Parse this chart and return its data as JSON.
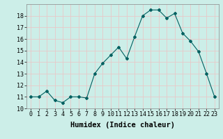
{
  "x": [
    0,
    1,
    2,
    3,
    4,
    5,
    6,
    7,
    8,
    9,
    10,
    11,
    12,
    13,
    14,
    15,
    16,
    17,
    18,
    19,
    20,
    21,
    22,
    23
  ],
  "y": [
    11,
    11,
    11.5,
    10.7,
    10.5,
    11,
    11,
    10.9,
    13,
    13.9,
    14.6,
    15.3,
    14.3,
    16.2,
    18,
    18.5,
    18.5,
    17.8,
    18.2,
    16.5,
    15.8,
    14.9,
    13,
    11
  ],
  "line_color": "#006060",
  "marker": "D",
  "marker_size": 2.0,
  "bg_color": "#cceee8",
  "grid_color": "#e8c8c8",
  "xlabel": "Humidex (Indice chaleur)",
  "xlim": [
    -0.5,
    23.5
  ],
  "ylim": [
    10,
    19
  ],
  "yticks": [
    10,
    11,
    12,
    13,
    14,
    15,
    16,
    17,
    18
  ],
  "xticks": [
    0,
    1,
    2,
    3,
    4,
    5,
    6,
    7,
    8,
    9,
    10,
    11,
    12,
    13,
    14,
    15,
    16,
    17,
    18,
    19,
    20,
    21,
    22,
    23
  ],
  "tick_fontsize": 6,
  "xlabel_fontsize": 7.5
}
